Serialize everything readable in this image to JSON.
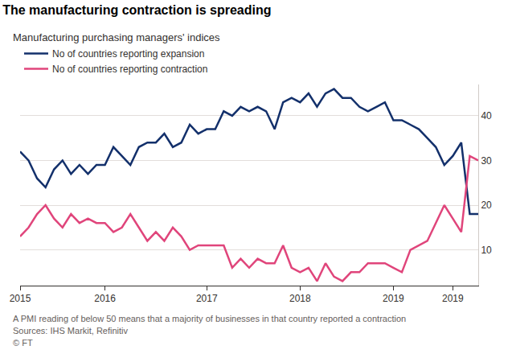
{
  "chart_data": {
    "type": "line",
    "title": "The manufacturing contraction is spreading",
    "subtitle": "Manufacturing purchasing managers' indices",
    "annotations": [
      "A PMI reading of below 50 means that a majority of businesses in that country reported a contraction",
      "Sources: IHS Markit, Refinitiv",
      "© FT"
    ],
    "categories": [
      "2015",
      null,
      null,
      null,
      null,
      null,
      null,
      null,
      null,
      null,
      "2016",
      null,
      null,
      null,
      null,
      null,
      null,
      null,
      null,
      null,
      null,
      null,
      "2017",
      null,
      null,
      null,
      null,
      null,
      null,
      null,
      null,
      null,
      null,
      "2018",
      null,
      null,
      null,
      null,
      null,
      null,
      null,
      null,
      null,
      null,
      "2019",
      null,
      null,
      null,
      null,
      null,
      null,
      "2019",
      null,
      null,
      null
    ],
    "series": [
      {
        "name": "No of countries reporting expansion",
        "color": "#13306b",
        "values": [
          32,
          30,
          26,
          24,
          28,
          30,
          27,
          29,
          27,
          29,
          29,
          33,
          31,
          29,
          33,
          34,
          34,
          36,
          33,
          34,
          38,
          36,
          37,
          37,
          41,
          40,
          42,
          41,
          42,
          41,
          37,
          43,
          44,
          43,
          45,
          42,
          45,
          46,
          44,
          44,
          42,
          41,
          42,
          43,
          39,
          39,
          38,
          37,
          35,
          33,
          29,
          31,
          34,
          18,
          18
        ]
      },
      {
        "name": "No of countries reporting contraction",
        "color": "#e0457b",
        "values": [
          13,
          15,
          18,
          20,
          17,
          15,
          18,
          16,
          17,
          16,
          16,
          14,
          15,
          18,
          15,
          12,
          14,
          12,
          15,
          13,
          10,
          11,
          11,
          11,
          11,
          6,
          8,
          6,
          8,
          7,
          7,
          11,
          6,
          5,
          6,
          3,
          7,
          4,
          3,
          5,
          5,
          7,
          7,
          7,
          6,
          5,
          10,
          11,
          12,
          16,
          20,
          17,
          14,
          31,
          30
        ]
      }
    ],
    "ylim": [
      2,
      47
    ],
    "yticks": [
      10,
      20,
      30,
      40
    ],
    "grid": true,
    "legend": "top left"
  }
}
